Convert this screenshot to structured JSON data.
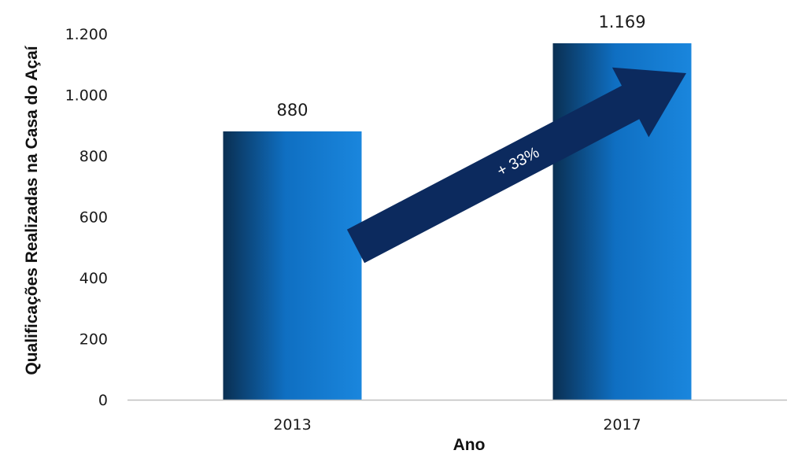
{
  "chart_data": {
    "type": "bar",
    "categories": [
      "2013",
      "2017"
    ],
    "values": [
      880,
      1169
    ],
    "value_labels": [
      "880",
      "1.169"
    ],
    "ylim": [
      0,
      1200
    ],
    "yticks": [
      0,
      200,
      400,
      600,
      800,
      1000,
      1200
    ],
    "ytick_labels": [
      "0",
      "200",
      "400",
      "600",
      "800",
      "1.000",
      "1.200"
    ],
    "xlabel": "Ano",
    "ylabel": "Qualificações Realizadas na Casa do Açaí",
    "grid": false,
    "annotation": "+ 33%",
    "colors": {
      "bar_dark": "#0a2f52",
      "bar_mid": "#0f6fc2",
      "bar_light": "#1a86dd",
      "arrow": "#0c2a5e",
      "axis": "#bfbfbf"
    }
  }
}
